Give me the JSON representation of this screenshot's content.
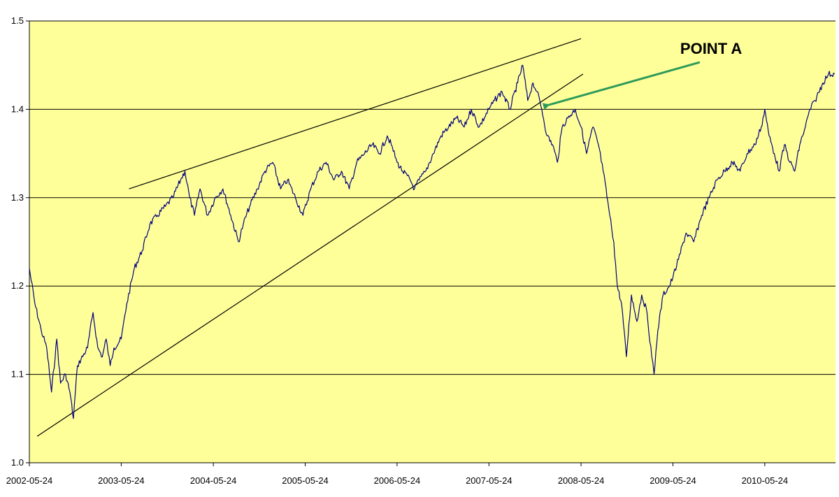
{
  "chart_data": {
    "type": "line",
    "title": "",
    "xlabel": "",
    "ylabel": "",
    "x_tick_labels": [
      "2002-05-24",
      "2003-05-24",
      "2004-05-24",
      "2005-05-24",
      "2006-05-24",
      "2007-05-24",
      "2008-05-24",
      "2009-05-24",
      "2010-05-24"
    ],
    "y_ticks": [
      1.0,
      1.1,
      1.2,
      1.3,
      1.4,
      1.5
    ],
    "y_tick_labels": [
      "1.0",
      "1.1",
      "1.2",
      "1.3",
      "1.4",
      "1.5"
    ],
    "xlim": [
      "2002-05-24",
      "2011-03-01"
    ],
    "ylim": [
      1.0,
      1.5
    ],
    "grid": "horizontal",
    "background_color": "#ffff99",
    "series": [
      {
        "color": "#00007f",
        "points": [
          [
            "2002-05-24",
            1.22
          ],
          [
            "2002-06-15",
            1.18
          ],
          [
            "2002-07-10",
            1.15
          ],
          [
            "2002-08-01",
            1.13
          ],
          [
            "2002-08-20",
            1.08
          ],
          [
            "2002-09-10",
            1.14
          ],
          [
            "2002-09-25",
            1.09
          ],
          [
            "2002-10-15",
            1.1
          ],
          [
            "2002-11-01",
            1.08
          ],
          [
            "2002-11-15",
            1.05
          ],
          [
            "2002-12-01",
            1.11
          ],
          [
            "2003-01-10",
            1.13
          ],
          [
            "2003-02-01",
            1.17
          ],
          [
            "2003-02-20",
            1.13
          ],
          [
            "2003-03-10",
            1.12
          ],
          [
            "2003-03-25",
            1.14
          ],
          [
            "2003-04-10",
            1.11
          ],
          [
            "2003-04-25",
            1.13
          ],
          [
            "2003-05-24",
            1.14
          ],
          [
            "2003-06-15",
            1.18
          ],
          [
            "2003-07-15",
            1.22
          ],
          [
            "2003-08-15",
            1.24
          ],
          [
            "2003-09-15",
            1.27
          ],
          [
            "2003-10-15",
            1.28
          ],
          [
            "2003-11-15",
            1.29
          ],
          [
            "2003-12-15",
            1.3
          ],
          [
            "2004-01-15",
            1.32
          ],
          [
            "2004-02-01",
            1.33
          ],
          [
            "2004-02-20",
            1.3
          ],
          [
            "2004-03-10",
            1.28
          ],
          [
            "2004-04-01",
            1.31
          ],
          [
            "2004-05-01",
            1.28
          ],
          [
            "2004-06-01",
            1.3
          ],
          [
            "2004-07-01",
            1.31
          ],
          [
            "2004-08-01",
            1.28
          ],
          [
            "2004-09-01",
            1.25
          ],
          [
            "2004-09-20",
            1.27
          ],
          [
            "2004-10-15",
            1.29
          ],
          [
            "2004-11-15",
            1.31
          ],
          [
            "2004-12-15",
            1.33
          ],
          [
            "2005-01-15",
            1.34
          ],
          [
            "2005-02-15",
            1.31
          ],
          [
            "2005-03-15",
            1.32
          ],
          [
            "2005-04-15",
            1.3
          ],
          [
            "2005-05-15",
            1.28
          ],
          [
            "2005-06-15",
            1.31
          ],
          [
            "2005-07-15",
            1.33
          ],
          [
            "2005-08-15",
            1.34
          ],
          [
            "2005-09-15",
            1.32
          ],
          [
            "2005-10-15",
            1.33
          ],
          [
            "2005-11-15",
            1.31
          ],
          [
            "2005-12-15",
            1.34
          ],
          [
            "2006-01-15",
            1.35
          ],
          [
            "2006-02-15",
            1.36
          ],
          [
            "2006-03-15",
            1.35
          ],
          [
            "2006-04-15",
            1.37
          ],
          [
            "2006-05-01",
            1.36
          ],
          [
            "2006-05-24",
            1.34
          ],
          [
            "2006-06-15",
            1.33
          ],
          [
            "2006-07-15",
            1.32
          ],
          [
            "2006-08-01",
            1.31
          ],
          [
            "2006-08-20",
            1.32
          ],
          [
            "2006-09-15",
            1.33
          ],
          [
            "2006-10-15",
            1.35
          ],
          [
            "2006-11-15",
            1.37
          ],
          [
            "2006-12-15",
            1.38
          ],
          [
            "2007-01-15",
            1.39
          ],
          [
            "2007-02-15",
            1.38
          ],
          [
            "2007-03-15",
            1.4
          ],
          [
            "2007-04-15",
            1.38
          ],
          [
            "2007-05-24",
            1.4
          ],
          [
            "2007-06-15",
            1.41
          ],
          [
            "2007-07-15",
            1.42
          ],
          [
            "2007-08-15",
            1.4
          ],
          [
            "2007-09-15",
            1.43
          ],
          [
            "2007-10-05",
            1.45
          ],
          [
            "2007-10-25",
            1.41
          ],
          [
            "2007-11-15",
            1.43
          ],
          [
            "2007-12-01",
            1.42
          ],
          [
            "2007-12-20",
            1.4
          ],
          [
            "2008-01-10",
            1.37
          ],
          [
            "2008-02-01",
            1.36
          ],
          [
            "2008-02-20",
            1.34
          ],
          [
            "2008-03-10",
            1.38
          ],
          [
            "2008-04-01",
            1.39
          ],
          [
            "2008-05-01",
            1.4
          ],
          [
            "2008-05-24",
            1.38
          ],
          [
            "2008-06-15",
            1.35
          ],
          [
            "2008-07-10",
            1.38
          ],
          [
            "2008-08-01",
            1.36
          ],
          [
            "2008-08-20",
            1.33
          ],
          [
            "2008-09-15",
            1.28
          ],
          [
            "2008-10-01",
            1.25
          ],
          [
            "2008-10-15",
            1.2
          ],
          [
            "2008-11-01",
            1.18
          ],
          [
            "2008-11-20",
            1.12
          ],
          [
            "2008-12-10",
            1.19
          ],
          [
            "2009-01-01",
            1.16
          ],
          [
            "2009-01-20",
            1.19
          ],
          [
            "2009-02-10",
            1.17
          ],
          [
            "2009-03-01",
            1.12
          ],
          [
            "2009-03-10",
            1.1
          ],
          [
            "2009-03-25",
            1.15
          ],
          [
            "2009-04-15",
            1.19
          ],
          [
            "2009-05-10",
            1.2
          ],
          [
            "2009-05-24",
            1.21
          ],
          [
            "2009-06-15",
            1.23
          ],
          [
            "2009-07-15",
            1.26
          ],
          [
            "2009-08-15",
            1.25
          ],
          [
            "2009-09-15",
            1.28
          ],
          [
            "2009-10-15",
            1.3
          ],
          [
            "2009-11-15",
            1.32
          ],
          [
            "2009-12-15",
            1.33
          ],
          [
            "2010-01-15",
            1.34
          ],
          [
            "2010-02-15",
            1.33
          ],
          [
            "2010-03-15",
            1.35
          ],
          [
            "2010-04-15",
            1.36
          ],
          [
            "2010-05-10",
            1.38
          ],
          [
            "2010-05-24",
            1.4
          ],
          [
            "2010-06-10",
            1.37
          ],
          [
            "2010-07-01",
            1.35
          ],
          [
            "2010-07-20",
            1.33
          ],
          [
            "2010-08-10",
            1.36
          ],
          [
            "2010-09-01",
            1.34
          ],
          [
            "2010-09-20",
            1.33
          ],
          [
            "2010-10-10",
            1.36
          ],
          [
            "2010-11-01",
            1.38
          ],
          [
            "2010-11-20",
            1.4
          ],
          [
            "2010-12-10",
            1.41
          ],
          [
            "2011-01-10",
            1.43
          ],
          [
            "2011-02-01",
            1.44
          ],
          [
            "2011-02-25",
            1.44
          ]
        ]
      }
    ],
    "trendlines": [
      {
        "color": "#000000",
        "start": [
          "2002-06-24",
          1.03
        ],
        "end": [
          "2008-06-01",
          1.44
        ]
      },
      {
        "color": "#000000",
        "start": [
          "2003-06-24",
          1.31
        ],
        "end": [
          "2008-05-24",
          1.48
        ]
      }
    ],
    "annotations": [
      {
        "text": "POINT A",
        "arrow_color": "#2e9a5a",
        "point": [
          "2007-12-20",
          1.405
        ]
      }
    ]
  }
}
